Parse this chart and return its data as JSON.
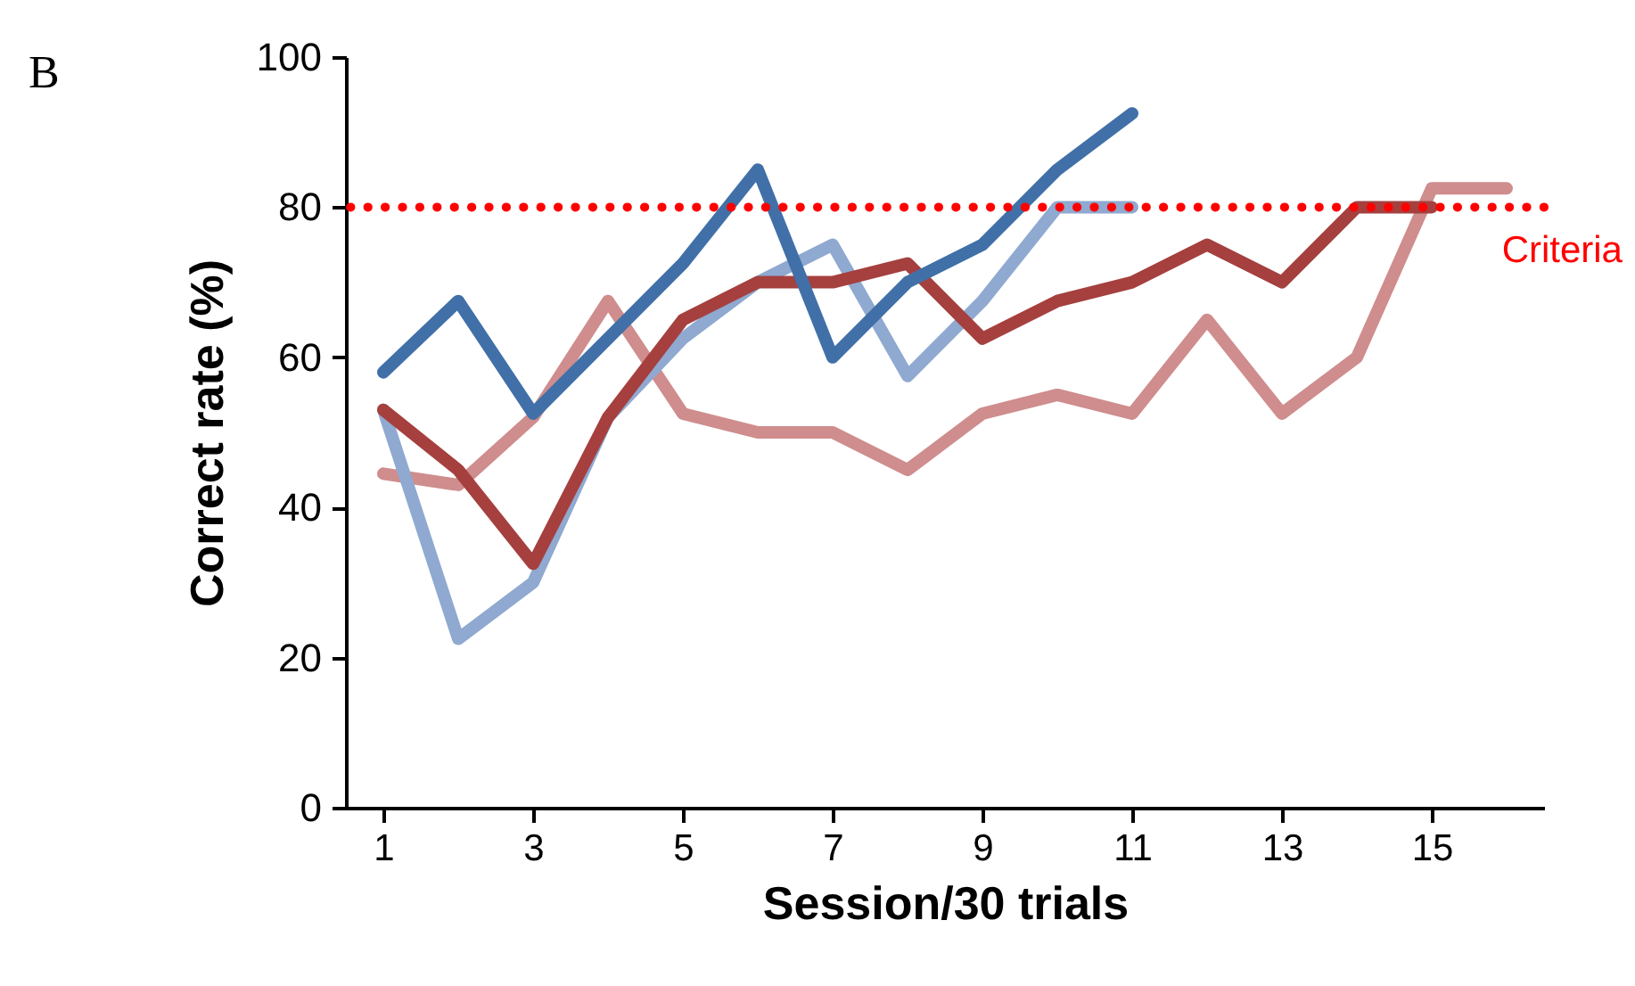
{
  "chart_data": {
    "type": "line",
    "xlabel": "Session/30 trials",
    "ylabel": "Correct rate (%)",
    "x": [
      1,
      2,
      3,
      4,
      5,
      6,
      7,
      8,
      9,
      10,
      11,
      12,
      13,
      14,
      15,
      16
    ],
    "xlim": [
      0.5,
      16.5
    ],
    "xticks": [
      1,
      3,
      5,
      7,
      9,
      11,
      13,
      15
    ],
    "ylim": [
      0,
      100
    ],
    "yticks": [
      0,
      20,
      40,
      60,
      80,
      100
    ],
    "grid": false,
    "series": [
      {
        "color": "#cf8d8d",
        "values": [
          44.5,
          43,
          52,
          67.5,
          52.5,
          50,
          50,
          45,
          52.5,
          55,
          52.5,
          65,
          52.5,
          60,
          82.5,
          82.5
        ]
      },
      {
        "color": "#8fa9d0",
        "values": [
          53,
          22.5,
          30,
          52,
          62.5,
          70,
          75,
          57.5,
          67.5,
          80,
          80,
          null,
          null,
          null,
          null,
          null
        ]
      },
      {
        "color": "#a5403e",
        "values": [
          53,
          45,
          32.5,
          52,
          65,
          70,
          70,
          72.5,
          62.5,
          67.5,
          70,
          75,
          70,
          80,
          80,
          null
        ]
      },
      {
        "color": "#4170a8",
        "values": [
          58,
          67.5,
          52.5,
          62.5,
          72.5,
          85,
          60,
          70,
          75,
          85,
          92.5,
          null,
          null,
          null,
          null,
          null
        ]
      }
    ],
    "ref_lines": [
      {
        "axis": "y",
        "value": 80,
        "label": "Criteria",
        "color": "#ff0000",
        "line_style": "dotted"
      }
    ],
    "annotations": [
      "B"
    ]
  }
}
